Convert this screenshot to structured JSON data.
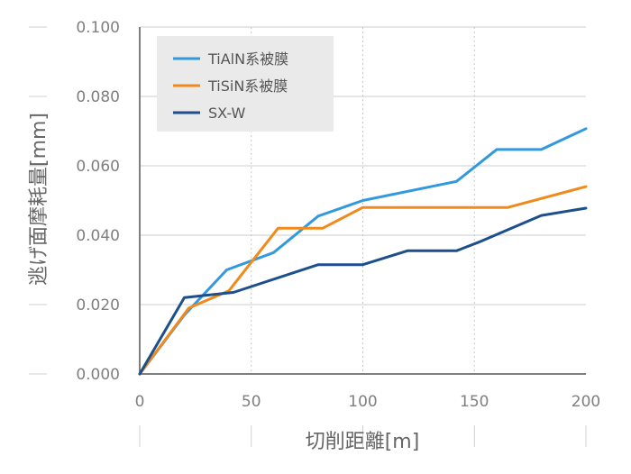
{
  "chart_data": {
    "type": "line",
    "title": "",
    "xlabel": "切削距離[m]",
    "ylabel": "逃げ面摩耗量[mm]",
    "xlim": [
      0,
      200
    ],
    "ylim": [
      0,
      0.1
    ],
    "x_ticks": [
      "0",
      "50",
      "100",
      "150",
      "200"
    ],
    "y_ticks": [
      "0.000",
      "0.020",
      "0.040",
      "0.060",
      "0.080",
      "0.100"
    ],
    "grid": "vertical dotted",
    "legend_position": "top-left",
    "series": [
      {
        "name": "TiAlN系被膜",
        "color": "#3399dd",
        "points": [
          [
            0,
            0
          ],
          [
            20,
            0.017
          ],
          [
            39,
            0.03
          ],
          [
            60,
            0.035
          ],
          [
            80,
            0.0455
          ],
          [
            100,
            0.05
          ],
          [
            142,
            0.0555
          ],
          [
            160,
            0.0647
          ],
          [
            180,
            0.0647
          ],
          [
            200,
            0.0707
          ]
        ]
      },
      {
        "name": "TiSiN系被膜",
        "color": "#f08a1c",
        "points": [
          [
            0,
            0
          ],
          [
            22,
            0.019
          ],
          [
            40,
            0.024
          ],
          [
            62,
            0.042
          ],
          [
            82,
            0.042
          ],
          [
            100,
            0.048
          ],
          [
            165,
            0.048
          ],
          [
            200,
            0.054
          ]
        ]
      },
      {
        "name": "SX-W",
        "color": "#1d4f8c",
        "points": [
          [
            0,
            0
          ],
          [
            20,
            0.022
          ],
          [
            42,
            0.0235
          ],
          [
            80,
            0.0315
          ],
          [
            100,
            0.0315
          ],
          [
            120,
            0.0355
          ],
          [
            142,
            0.0355
          ],
          [
            152,
            0.038
          ],
          [
            180,
            0.0457
          ],
          [
            200,
            0.0478
          ]
        ]
      }
    ]
  }
}
